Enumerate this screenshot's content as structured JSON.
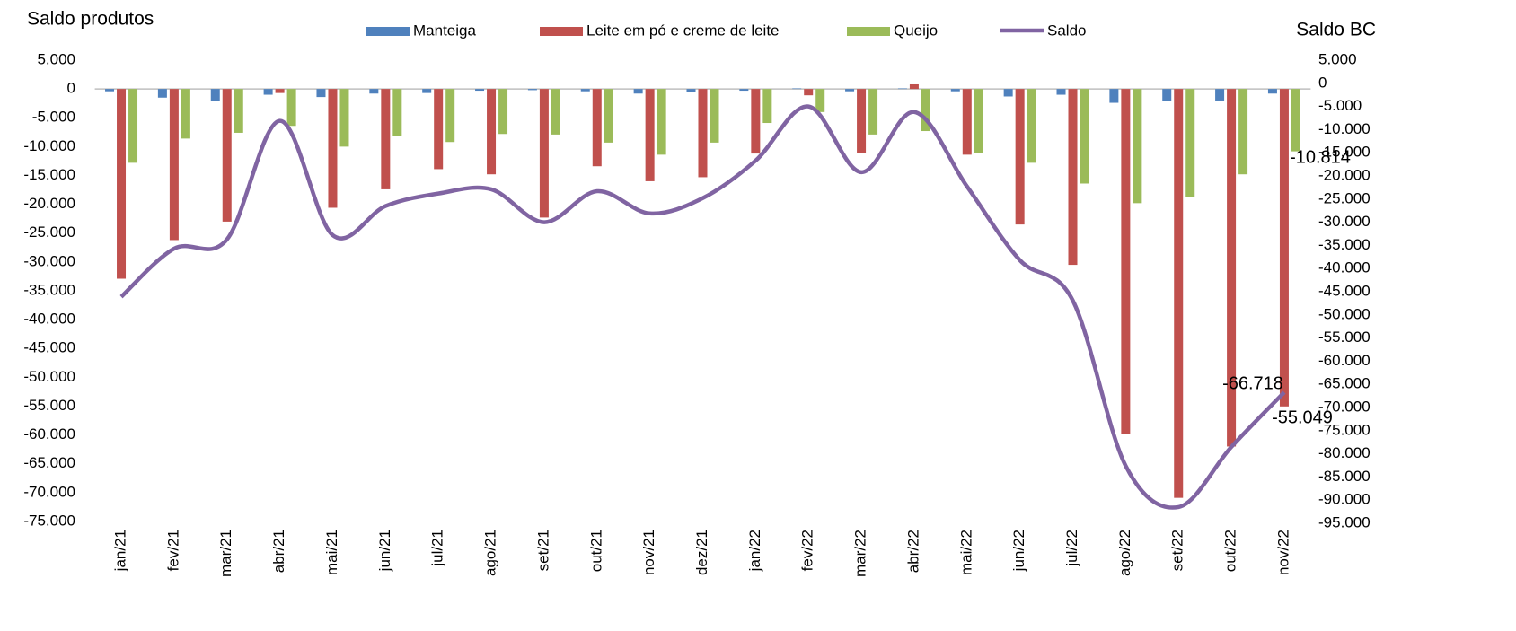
{
  "chart_data": {
    "type": "bar_line",
    "title": "Saldo produtos",
    "y2_label": "Saldo BC",
    "categories": [
      "jan/21",
      "fev/21",
      "mar/21",
      "abr/21",
      "mai/21",
      "jun/21",
      "jul/21",
      "ago/21",
      "set/21",
      "out/21",
      "nov/21",
      "dez/21",
      "jan/22",
      "fev/22",
      "mar/22",
      "abr/22",
      "mai/22",
      "jun/22",
      "jul/22",
      "ago/22",
      "set/22",
      "out/22",
      "nov/22"
    ],
    "series": [
      {
        "name": "Manteiga",
        "type": "bar",
        "color": "#4f81bd",
        "values": [
          -400,
          -1500,
          -2100,
          -1000,
          -1400,
          -800,
          -700,
          -300,
          -200,
          -400,
          -800,
          -500,
          -300,
          100,
          -400,
          100,
          -400,
          -1300,
          -1000,
          -2400,
          -2100,
          -2000,
          -800
        ]
      },
      {
        "name": "Leite em pó e creme de leite",
        "type": "bar",
        "color": "#c0504d",
        "values": [
          -32900,
          -26200,
          -23000,
          -700,
          -20600,
          -17400,
          -13900,
          -14800,
          -22300,
          -13400,
          -16000,
          -15300,
          -11200,
          -1100,
          -11100,
          800,
          -11400,
          -23500,
          -30500,
          -59800,
          -70900,
          -62000,
          -55049
        ],
        "value_labels": [
          null,
          null,
          null,
          null,
          null,
          null,
          null,
          null,
          null,
          null,
          null,
          null,
          null,
          null,
          null,
          null,
          null,
          null,
          null,
          null,
          null,
          null,
          "-55.049"
        ]
      },
      {
        "name": "Queijo",
        "type": "bar",
        "color": "#9bbb59",
        "values": [
          -12800,
          -8600,
          -7600,
          -6400,
          -10000,
          -8100,
          -9200,
          -7800,
          -7900,
          -9300,
          -11400,
          -9300,
          -5900,
          -4000,
          -7900,
          -7300,
          -11100,
          -12800,
          -16400,
          -19800,
          -18700,
          -14800,
          -10814
        ],
        "value_labels": [
          null,
          null,
          null,
          null,
          null,
          null,
          null,
          null,
          null,
          null,
          null,
          null,
          null,
          null,
          null,
          null,
          null,
          null,
          null,
          null,
          null,
          null,
          "-10.814"
        ]
      },
      {
        "name": "Saldo",
        "type": "line",
        "axis": "y2",
        "color": "#8064a2",
        "values": [
          -46100,
          -35700,
          -33700,
          -8100,
          -32800,
          -26500,
          -23800,
          -22900,
          -30000,
          -23300,
          -28100,
          -24800,
          -16700,
          -5000,
          -19200,
          -6200,
          -22300,
          -38200,
          -46900,
          -82600,
          -91500,
          -78500,
          -66718
        ],
        "value_labels": [
          null,
          null,
          null,
          null,
          null,
          null,
          null,
          null,
          null,
          null,
          null,
          null,
          null,
          null,
          null,
          null,
          null,
          null,
          null,
          null,
          null,
          null,
          "-66.718"
        ]
      }
    ],
    "ylim": [
      5000,
      -75000
    ],
    "yticks": [
      {
        "value": 5000,
        "label": "5.000"
      },
      0,
      {
        "value": -5000,
        "label": "-5.000"
      },
      {
        "value": -10000,
        "label": "-10.000"
      },
      {
        "value": -15000,
        "label": "-15.000"
      },
      {
        "value": -20000,
        "label": "-20.000"
      },
      {
        "value": -25000,
        "label": "-25.000"
      },
      {
        "value": -30000,
        "label": "-30.000"
      },
      {
        "value": -35000,
        "label": "-35.000"
      },
      {
        "value": -40000,
        "label": "-40.000"
      },
      {
        "value": -45000,
        "label": "-45.000"
      },
      {
        "value": -50000,
        "label": "-50.000"
      },
      {
        "value": -55000,
        "label": "-55.000"
      },
      {
        "value": -60000,
        "label": "-60.000"
      },
      {
        "value": -65000,
        "label": "-65.000"
      },
      {
        "value": -70000,
        "label": "-70.000"
      },
      {
        "value": -75000,
        "label": "-75.000"
      }
    ],
    "y2lim": [
      5000,
      -95000
    ],
    "y2ticks": [
      {
        "value": 5000,
        "label": "5.000"
      },
      0,
      {
        "value": -5000,
        "label": "-5.000"
      },
      {
        "value": -10000,
        "label": "-10.000"
      },
      {
        "value": -15000,
        "label": "-15.000"
      },
      {
        "value": -20000,
        "label": "-20.000"
      },
      {
        "value": -25000,
        "label": "-25.000"
      },
      {
        "value": -30000,
        "label": "-30.000"
      },
      {
        "value": -35000,
        "label": "-35.000"
      },
      {
        "value": -40000,
        "label": "-40.000"
      },
      {
        "value": -45000,
        "label": "-45.000"
      },
      {
        "value": -50000,
        "label": "-50.000"
      },
      {
        "value": -55000,
        "label": "-55.000"
      },
      {
        "value": -60000,
        "label": "-60.000"
      },
      {
        "value": -65000,
        "label": "-65.000"
      },
      {
        "value": -70000,
        "label": "-70.000"
      },
      {
        "value": -75000,
        "label": "-75.000"
      },
      {
        "value": -80000,
        "label": "-80.000"
      },
      {
        "value": -85000,
        "label": "-85.000"
      },
      {
        "value": -90000,
        "label": "-90.000"
      },
      {
        "value": -95000,
        "label": "-95.000"
      }
    ],
    "grid": false,
    "legend": "top"
  }
}
